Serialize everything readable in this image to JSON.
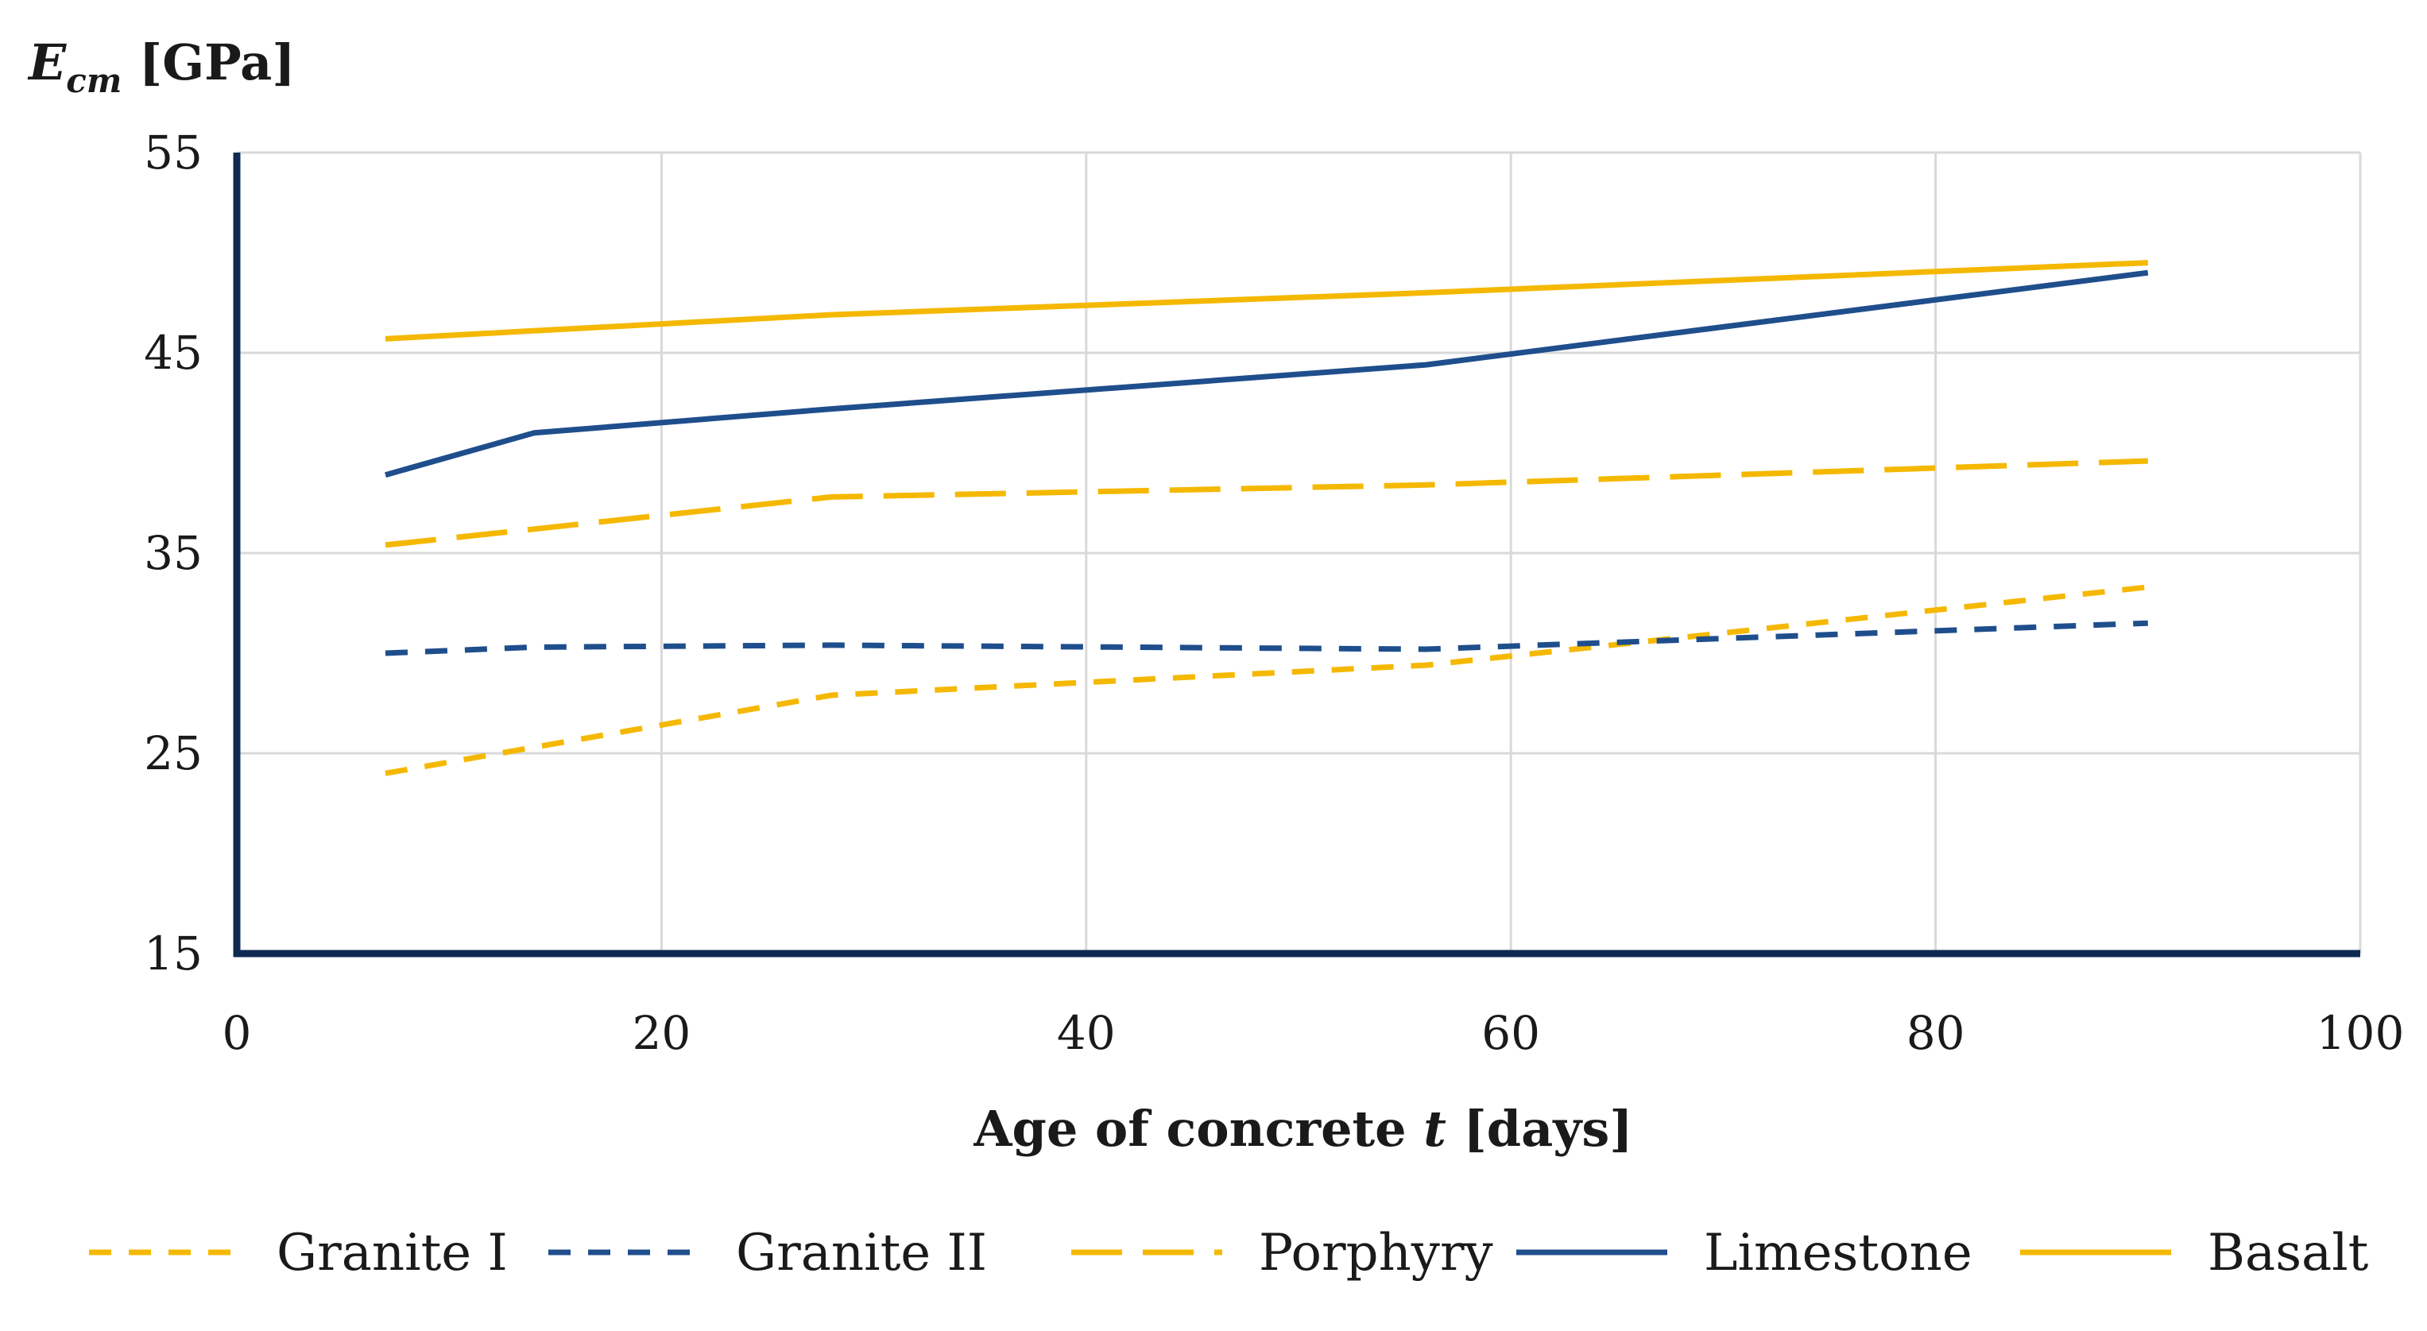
{
  "chart_data": {
    "type": "line",
    "title": "",
    "ylabel": {
      "main": "E",
      "sub": "cm",
      "unit": " [GPa]"
    },
    "xlabel": {
      "before": "Age of concrete ",
      "italic": "t",
      "after": " [days]"
    },
    "xlim": [
      0,
      100
    ],
    "ylim": [
      15,
      55
    ],
    "xticks": [
      0,
      20,
      40,
      60,
      80,
      100
    ],
    "yticks": [
      15,
      25,
      35,
      45,
      55
    ],
    "grid": true,
    "legend_position": "bottom",
    "colors": {
      "gold": "#F5B800",
      "navy": "#1F4E8C",
      "axis": "#0F2A52",
      "grid": "#D9D9D9"
    },
    "series": [
      {
        "name": "Granite I",
        "color": "#F5B800",
        "style": "short-dash",
        "x": [
          7,
          14,
          28,
          56,
          90
        ],
        "y": [
          24.0,
          25.3,
          27.9,
          29.4,
          33.3
        ]
      },
      {
        "name": "Granite II",
        "color": "#1F4E8C",
        "style": "short-dash",
        "x": [
          7,
          14,
          28,
          56,
          90
        ],
        "y": [
          30.0,
          30.3,
          30.4,
          30.2,
          31.5
        ]
      },
      {
        "name": "Porphyry",
        "color": "#F5B800",
        "style": "long-dash",
        "x": [
          7,
          14,
          28,
          56,
          90
        ],
        "y": [
          35.4,
          36.2,
          37.8,
          38.4,
          39.6
        ]
      },
      {
        "name": "Limestone",
        "color": "#1F4E8C",
        "style": "solid",
        "x": [
          7,
          14,
          28,
          56,
          90
        ],
        "y": [
          38.9,
          41.0,
          42.2,
          44.4,
          49.0
        ]
      },
      {
        "name": "Basalt",
        "color": "#F5B800",
        "style": "solid",
        "x": [
          7,
          14,
          28,
          56,
          90
        ],
        "y": [
          45.7,
          46.1,
          46.9,
          48.0,
          49.5
        ]
      }
    ]
  }
}
